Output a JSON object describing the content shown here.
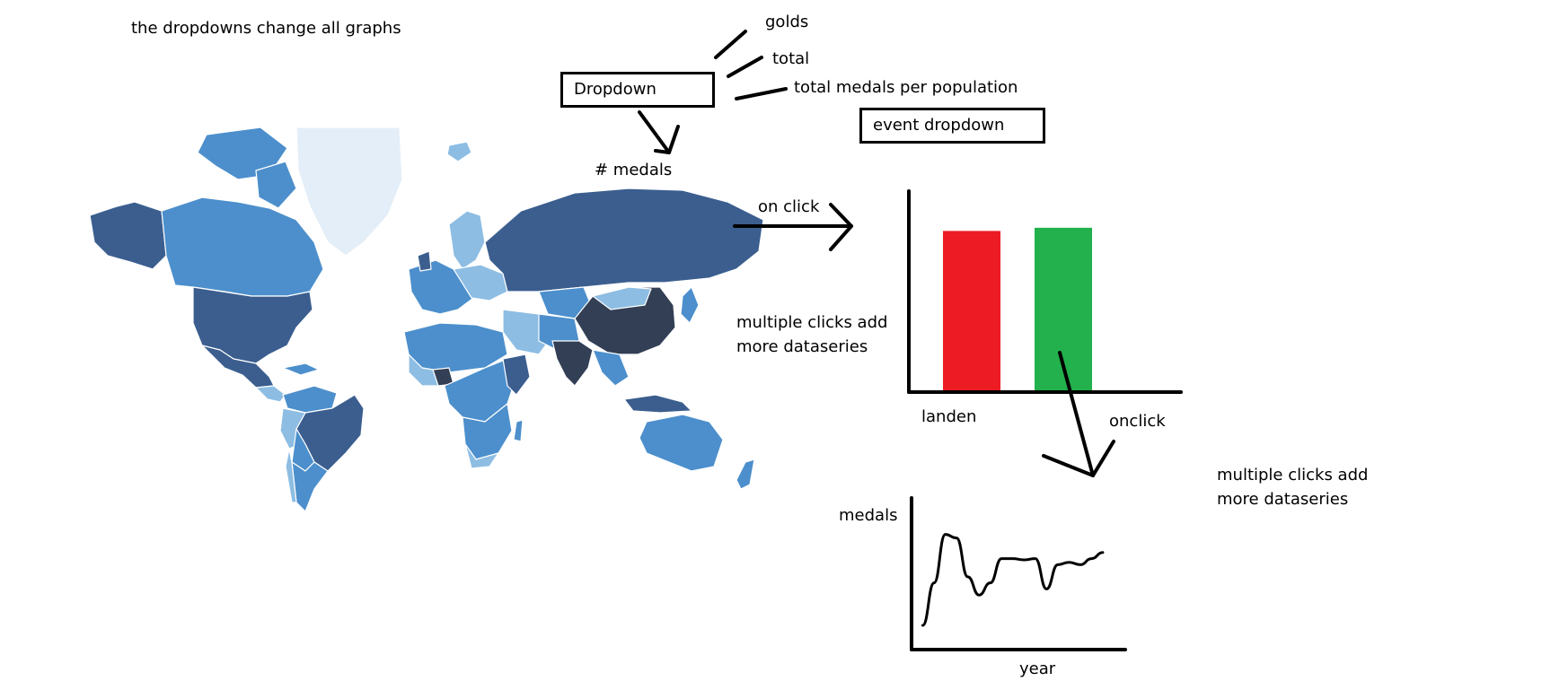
{
  "note_top": "the dropdowns change all graphs",
  "dropdown": {
    "label": "Dropdown",
    "options": [
      "golds",
      "total",
      "total medals per population"
    ]
  },
  "event_dropdown": {
    "label": "event dropdown"
  },
  "map": {
    "legend_label": "# medals",
    "colors": {
      "lightest": "#e4eef8",
      "light": "#8dbde3",
      "mid": "#4c8fcc",
      "dark": "#3b5e8f",
      "darkest": "#323f55"
    }
  },
  "bar_chart": {
    "trigger_label": "on click",
    "note": [
      "multiple clicks add",
      "more dataseries"
    ],
    "xlabel": "landen",
    "bar_colors": [
      "#ed1c24",
      "#22b14c"
    ]
  },
  "line_chart": {
    "trigger_label": "onclick",
    "note": [
      "multiple clicks add",
      "more dataseries"
    ],
    "ylabel": "medals",
    "xlabel": "year"
  },
  "chart_data": [
    {
      "type": "bar",
      "xlabel": "landen",
      "ylabel": "",
      "categories": [
        "",
        ""
      ],
      "values": [
        1.0,
        1.02
      ],
      "ylim": [
        0,
        1.25
      ]
    },
    {
      "type": "line",
      "xlabel": "year",
      "ylabel": "medals",
      "x": [
        0,
        1,
        2,
        3,
        4,
        5,
        6,
        7,
        8,
        9,
        10,
        11,
        12,
        13,
        14,
        15,
        16
      ],
      "y": [
        0.2,
        0.55,
        0.95,
        0.92,
        0.6,
        0.45,
        0.55,
        0.75,
        0.75,
        0.74,
        0.75,
        0.5,
        0.7,
        0.72,
        0.7,
        0.75,
        0.8
      ],
      "xlim": [
        -1,
        18
      ],
      "ylim": [
        0,
        1.25
      ]
    }
  ]
}
